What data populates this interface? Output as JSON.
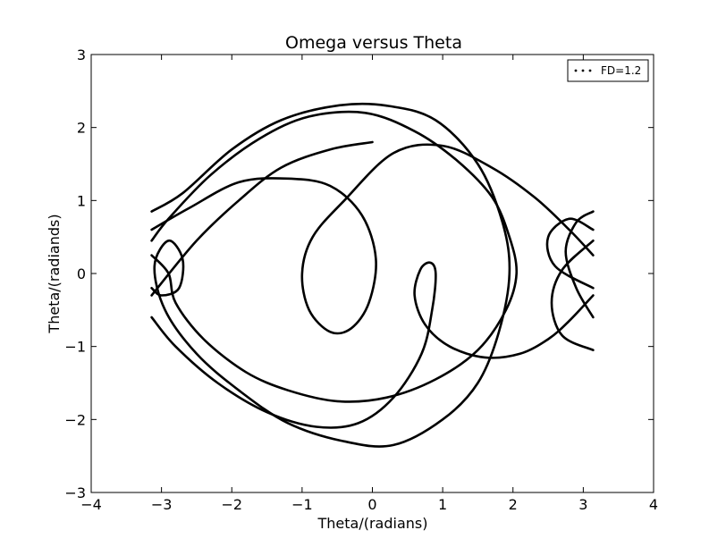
{
  "chart_data": {
    "type": "line",
    "title": "Omega versus Theta",
    "xlabel": "Theta/(radians)",
    "ylabel": "Theta/(radiands)",
    "xlim": [
      -4,
      4
    ],
    "ylim": [
      -3,
      3
    ],
    "xticks": [
      -4,
      -3,
      -2,
      -1,
      0,
      1,
      2,
      3,
      4
    ],
    "yticks": [
      -3,
      -2,
      -1,
      0,
      1,
      2,
      3
    ],
    "xtick_labels": [
      "−4",
      "−3",
      "−2",
      "−1",
      "0",
      "1",
      "2",
      "3",
      "4"
    ],
    "ytick_labels": [
      "−3",
      "−2",
      "−1",
      "0",
      "1",
      "2",
      "3"
    ],
    "grid": false,
    "legend": {
      "position": "top-right",
      "entries": [
        "FD=1.2"
      ]
    },
    "series": [
      {
        "name": "FD=1.2",
        "color": "#000000",
        "style": "dotted, wrapped to [-π, π]",
        "points": [
          [
            0.0,
            1.8
          ],
          [
            -0.6,
            1.7
          ],
          [
            -1.3,
            1.45
          ],
          [
            -1.9,
            1.0
          ],
          [
            -2.5,
            0.45
          ],
          [
            -3.14,
            -0.3
          ],
          [
            3.14,
            -0.3
          ],
          [
            2.8,
            -0.65
          ],
          [
            2.5,
            -0.9
          ],
          [
            2.1,
            -1.1
          ],
          [
            1.6,
            -1.15
          ],
          [
            1.1,
            -1.0
          ],
          [
            0.75,
            -0.7
          ],
          [
            0.6,
            -0.3
          ],
          [
            0.68,
            0.05
          ],
          [
            0.82,
            0.15
          ],
          [
            0.9,
            0.0
          ],
          [
            0.85,
            -0.5
          ],
          [
            0.7,
            -1.1
          ],
          [
            0.3,
            -1.7
          ],
          [
            -0.2,
            -2.05
          ],
          [
            -0.8,
            -2.1
          ],
          [
            -1.5,
            -1.9
          ],
          [
            -2.2,
            -1.5
          ],
          [
            -2.8,
            -1.0
          ],
          [
            -3.14,
            -0.6
          ],
          [
            3.14,
            -0.6
          ],
          [
            2.9,
            -0.2
          ],
          [
            2.75,
            0.3
          ],
          [
            2.9,
            0.7
          ],
          [
            3.14,
            0.85
          ],
          [
            -3.14,
            0.85
          ],
          [
            -2.7,
            1.1
          ],
          [
            -2.0,
            1.7
          ],
          [
            -1.3,
            2.1
          ],
          [
            -0.5,
            2.3
          ],
          [
            0.2,
            2.3
          ],
          [
            0.9,
            2.1
          ],
          [
            1.5,
            1.5
          ],
          [
            1.85,
            0.7
          ],
          [
            1.95,
            0.0
          ],
          [
            1.8,
            -0.8
          ],
          [
            1.5,
            -1.5
          ],
          [
            1.0,
            -2.0
          ],
          [
            0.3,
            -2.35
          ],
          [
            -0.4,
            -2.3
          ],
          [
            -1.2,
            -2.05
          ],
          [
            -1.9,
            -1.6
          ],
          [
            -2.5,
            -1.1
          ],
          [
            -2.95,
            -0.5
          ],
          [
            -3.1,
            0.1
          ],
          [
            -2.9,
            0.45
          ],
          [
            -2.7,
            0.2
          ],
          [
            -2.75,
            -0.2
          ],
          [
            -3.0,
            -0.3
          ],
          [
            -3.14,
            -0.2
          ],
          [
            3.14,
            -0.2
          ],
          [
            2.6,
            0.1
          ],
          [
            2.5,
            0.5
          ],
          [
            2.8,
            0.75
          ],
          [
            3.14,
            0.6
          ],
          [
            -3.14,
            0.6
          ],
          [
            -2.6,
            0.9
          ],
          [
            -1.9,
            1.25
          ],
          [
            -1.2,
            1.3
          ],
          [
            -0.6,
            1.2
          ],
          [
            -0.15,
            0.8
          ],
          [
            0.05,
            0.2
          ],
          [
            -0.05,
            -0.4
          ],
          [
            -0.3,
            -0.75
          ],
          [
            -0.6,
            -0.8
          ],
          [
            -0.9,
            -0.5
          ],
          [
            -1.0,
            0.0
          ],
          [
            -0.85,
            0.5
          ],
          [
            -0.4,
            1.0
          ],
          [
            0.3,
            1.65
          ],
          [
            1.0,
            1.75
          ],
          [
            1.7,
            1.45
          ],
          [
            2.3,
            1.05
          ],
          [
            2.8,
            0.6
          ],
          [
            3.14,
            0.25
          ],
          [
            -3.14,
            0.25
          ],
          [
            -2.9,
            0.0
          ],
          [
            -2.8,
            -0.4
          ],
          [
            -2.4,
            -0.9
          ],
          [
            -1.8,
            -1.35
          ],
          [
            -1.2,
            -1.6
          ],
          [
            -0.5,
            -1.75
          ],
          [
            0.2,
            -1.7
          ],
          [
            0.9,
            -1.45
          ],
          [
            1.5,
            -1.05
          ],
          [
            1.9,
            -0.5
          ],
          [
            2.05,
            0.0
          ],
          [
            1.95,
            0.5
          ],
          [
            1.7,
            1.05
          ],
          [
            1.2,
            1.55
          ],
          [
            0.6,
            1.95
          ],
          [
            -0.1,
            2.2
          ],
          [
            -0.9,
            2.15
          ],
          [
            -1.6,
            1.85
          ],
          [
            -2.3,
            1.35
          ],
          [
            -2.9,
            0.75
          ],
          [
            -3.14,
            0.45
          ],
          [
            3.14,
            0.45
          ],
          [
            2.7,
            0.05
          ],
          [
            2.55,
            -0.4
          ],
          [
            2.7,
            -0.85
          ],
          [
            3.14,
            -1.05
          ]
        ]
      }
    ]
  }
}
